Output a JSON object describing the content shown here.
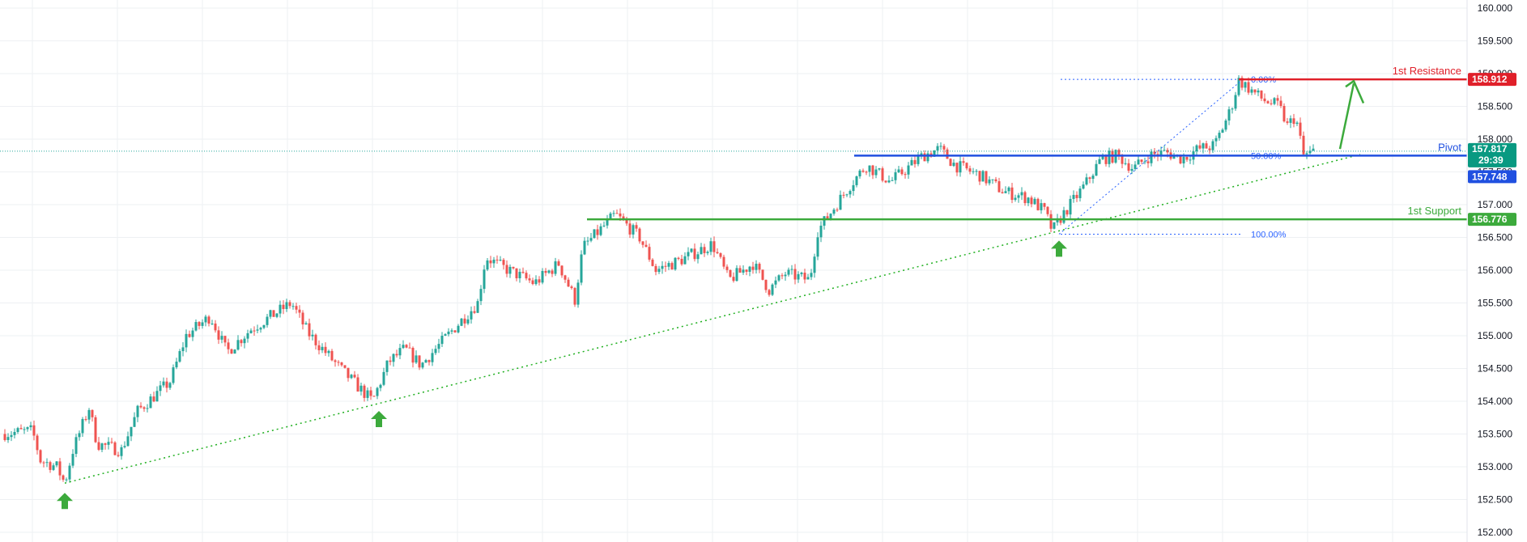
{
  "chart_data": {
    "type": "candlestick",
    "title": "",
    "xlabel": "",
    "ylabel": "",
    "ylim": [
      152.0,
      160.0
    ],
    "y_ticks": [
      "152.000",
      "152.500",
      "153.000",
      "153.500",
      "154.000",
      "154.500",
      "155.000",
      "155.500",
      "156.000",
      "156.500",
      "157.000",
      "157.500",
      "158.000",
      "158.500",
      "159.000",
      "159.500",
      "160.000"
    ],
    "grid": true,
    "colors": {
      "up": "#26a69a",
      "down": "#ef5350",
      "resistance": "#e0202a",
      "pivot": "#2050e0",
      "support": "#3caa3c",
      "trend": "#22b022",
      "fib": "#2962ff"
    },
    "price_path": [
      [
        0,
        153.5
      ],
      [
        40,
        153.55
      ],
      [
        50,
        153.1
      ],
      [
        70,
        153.0
      ],
      [
        80,
        152.75
      ],
      [
        90,
        153.25
      ],
      [
        110,
        153.9
      ],
      [
        120,
        153.35
      ],
      [
        150,
        153.25
      ],
      [
        170,
        153.85
      ],
      [
        210,
        154.3
      ],
      [
        230,
        155.0
      ],
      [
        260,
        155.3
      ],
      [
        280,
        154.75
      ],
      [
        310,
        155.1
      ],
      [
        360,
        155.5
      ],
      [
        380,
        155.05
      ],
      [
        420,
        154.5
      ],
      [
        460,
        154.0
      ],
      [
        480,
        154.6
      ],
      [
        500,
        154.8
      ],
      [
        520,
        154.55
      ],
      [
        560,
        155.1
      ],
      [
        590,
        155.5
      ],
      [
        600,
        156.2
      ],
      [
        620,
        156.05
      ],
      [
        660,
        155.8
      ],
      [
        690,
        156.1
      ],
      [
        710,
        155.55
      ],
      [
        720,
        156.35
      ],
      [
        760,
        156.85
      ],
      [
        790,
        156.5
      ],
      [
        810,
        156.0
      ],
      [
        840,
        156.15
      ],
      [
        880,
        156.4
      ],
      [
        900,
        155.85
      ],
      [
        930,
        156.1
      ],
      [
        950,
        155.7
      ],
      [
        970,
        155.95
      ],
      [
        1000,
        155.85
      ],
      [
        1010,
        156.6
      ],
      [
        1050,
        157.3
      ],
      [
        1070,
        157.6
      ],
      [
        1100,
        157.35
      ],
      [
        1140,
        157.75
      ],
      [
        1160,
        157.85
      ],
      [
        1180,
        157.6
      ],
      [
        1210,
        157.45
      ],
      [
        1240,
        157.2
      ],
      [
        1270,
        157.1
      ],
      [
        1290,
        156.9
      ],
      [
        1300,
        156.6
      ],
      [
        1310,
        156.8
      ],
      [
        1340,
        157.3
      ],
      [
        1360,
        157.7
      ],
      [
        1380,
        157.75
      ],
      [
        1400,
        157.55
      ],
      [
        1420,
        157.75
      ],
      [
        1440,
        157.8
      ],
      [
        1460,
        157.7
      ],
      [
        1480,
        157.85
      ],
      [
        1500,
        157.9
      ],
      [
        1520,
        158.45
      ],
      [
        1530,
        158.9
      ],
      [
        1540,
        158.8
      ],
      [
        1560,
        158.6
      ],
      [
        1580,
        158.5
      ],
      [
        1590,
        158.2
      ],
      [
        1600,
        158.35
      ],
      [
        1610,
        157.75
      ],
      [
        1625,
        157.817
      ]
    ],
    "support_lows": [
      {
        "x": 80,
        "y": 152.75
      },
      {
        "x": 468,
        "y": 154.0
      },
      {
        "x": 1308,
        "y": 156.6
      }
    ],
    "levels": [
      {
        "name": "1st Resistance",
        "value": 158.912,
        "badge": "158.912"
      },
      {
        "name": "Pivot",
        "value": 157.748,
        "badge": "157.748"
      },
      {
        "name": "1st Support",
        "value": 156.776,
        "badge": "156.776"
      }
    ],
    "current_price": {
      "value": 157.817,
      "badge": "157.817",
      "countdown": "29:39"
    },
    "fibonacci": [
      {
        "label": "0.00%",
        "value": 158.912
      },
      {
        "label": "50.00%",
        "value": 157.75
      },
      {
        "label": "100.00%",
        "value": 156.55
      }
    ]
  }
}
